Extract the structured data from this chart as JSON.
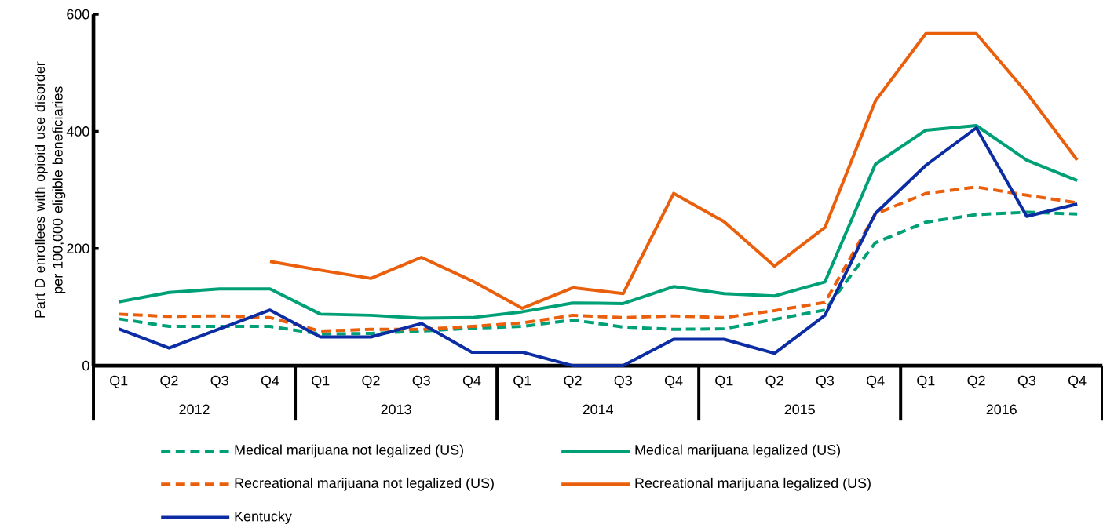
{
  "chart_data": {
    "type": "line",
    "ylabel": "Part D enrollees with opioid use disorder per 100,000 eligible beneficiaries",
    "categories": [
      "Q1",
      "Q2",
      "Q3",
      "Q4",
      "Q1",
      "Q2",
      "Q3",
      "Q4",
      "Q1",
      "Q2",
      "Q3",
      "Q4",
      "Q1",
      "Q2",
      "Q3",
      "Q4",
      "Q1",
      "Q2",
      "Q3",
      "Q4"
    ],
    "annotations": [
      "2012",
      "2013",
      "2014",
      "2015",
      "2016"
    ],
    "ylim": [
      0,
      600
    ],
    "yticks": [
      0,
      200,
      400,
      600
    ],
    "grid": false,
    "legend": "bottom",
    "marker": "none",
    "series": [
      {
        "name": "Medical marijuana not legalized (US)",
        "color": "#00a077",
        "line_style": "dashed",
        "values": [
          80,
          67,
          67,
          67,
          54,
          55,
          59,
          64,
          67,
          78,
          66,
          62,
          63,
          79,
          95,
          210,
          245,
          258,
          262,
          259
        ]
      },
      {
        "name": "Medical marijuana legalized (US)",
        "color": "#00a077",
        "line_style": "solid",
        "values": [
          109,
          125,
          131,
          131,
          88,
          86,
          81,
          82,
          92,
          107,
          106,
          135,
          123,
          119,
          143,
          344,
          402,
          410,
          351,
          316
        ]
      },
      {
        "name": "Recreational marijuana not legalized (US)",
        "color": "#ea5f0c",
        "line_style": "dashed",
        "values": [
          88,
          84,
          85,
          82,
          59,
          62,
          62,
          67,
          73,
          86,
          82,
          85,
          82,
          94,
          108,
          259,
          294,
          305,
          291,
          278
        ]
      },
      {
        "name": "Recreational marijuana legalized (US)",
        "color": "#ea5f0c",
        "line_style": "solid",
        "values": [
          null,
          null,
          null,
          178,
          163,
          149,
          185,
          145,
          98,
          133,
          123,
          294,
          246,
          170,
          236,
          452,
          567,
          567,
          466,
          351
        ]
      },
      {
        "name": "Kentucky",
        "color": "#0b2ca3",
        "line_style": "solid",
        "values": [
          63,
          30,
          63,
          95,
          49,
          49,
          72,
          23,
          23,
          0,
          0,
          45,
          45,
          21,
          86,
          260,
          342,
          406,
          255,
          276
        ]
      }
    ]
  }
}
